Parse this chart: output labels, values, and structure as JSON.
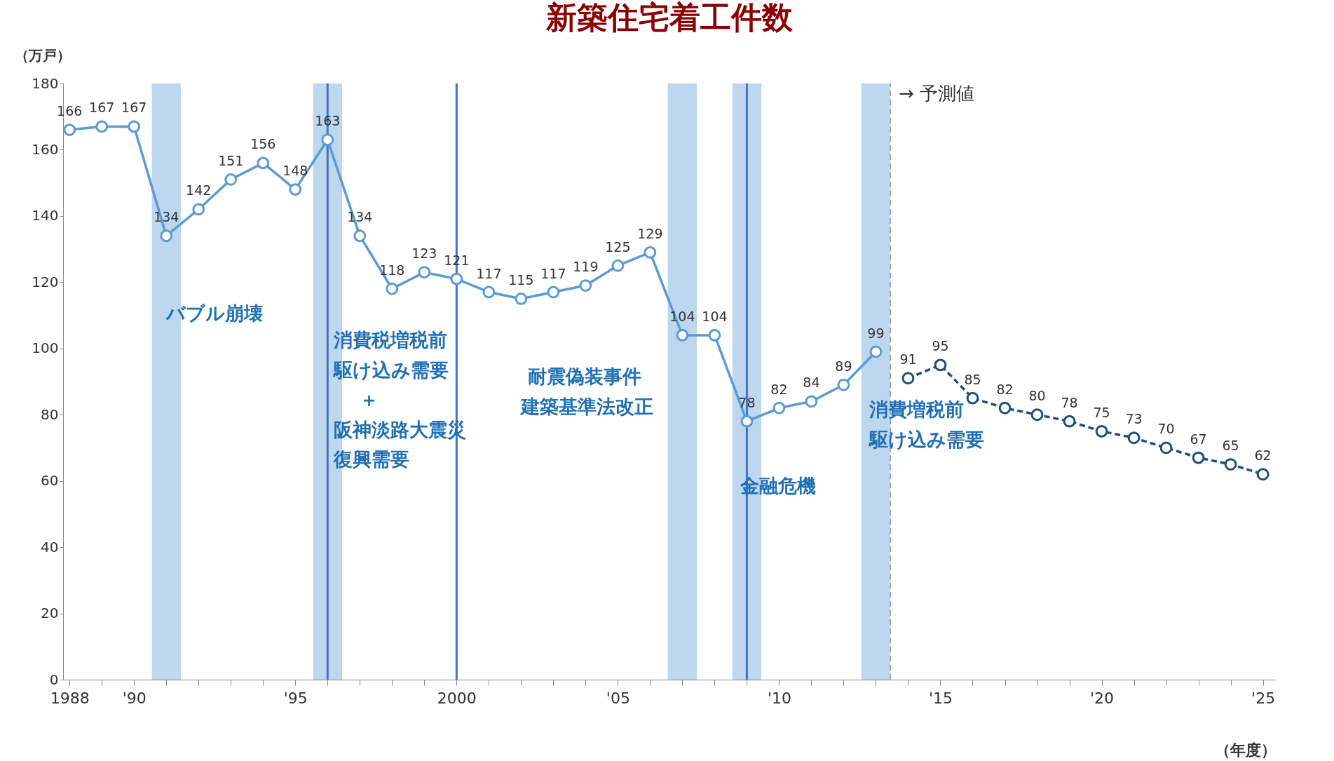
{
  "chart_data": {
    "type": "line",
    "title": "新築住宅着工件数",
    "ylabel": "（万戸）",
    "xlabel": "（年度）",
    "x": [
      1988,
      1989,
      1990,
      1991,
      1992,
      1993,
      1994,
      1995,
      1996,
      1997,
      1998,
      1999,
      2000,
      2001,
      2002,
      2003,
      2004,
      2005,
      2006,
      2007,
      2008,
      2009,
      2010,
      2011,
      2012,
      2013
    ],
    "series": [
      {
        "color": "#5b9bd5",
        "line_style": "solid",
        "values": [
          166,
          167,
          167,
          134,
          142,
          151,
          156,
          148,
          163,
          134,
          118,
          123,
          121,
          117,
          115,
          117,
          119,
          125,
          129,
          104,
          104,
          78,
          82,
          84,
          89,
          99
        ]
      },
      {
        "color": "#1f4e79",
        "line_style": "dashed",
        "x": [
          2014,
          2015,
          2016,
          2017,
          2018,
          2019,
          2020,
          2021,
          2022,
          2023,
          2024,
          2025
        ],
        "values": [
          91,
          95,
          85,
          82,
          80,
          78,
          75,
          73,
          70,
          67,
          65,
          62
        ]
      }
    ],
    "marker": "circle",
    "data_labels": true,
    "grid": false,
    "xlim": [
      1987.8,
      2025.4
    ],
    "ylim": [
      0,
      180
    ],
    "yticks": [
      0,
      20,
      40,
      60,
      80,
      100,
      120,
      140,
      160,
      180
    ],
    "xticks": [
      {
        "value": 1988,
        "label": "1988"
      },
      {
        "value": 1989,
        "label": null
      },
      {
        "value": 1990,
        "label": "'90"
      },
      {
        "value": 1991,
        "label": null
      },
      {
        "value": 1992,
        "label": null
      },
      {
        "value": 1993,
        "label": null
      },
      {
        "value": 1994,
        "label": null
      },
      {
        "value": 1995,
        "label": "'95"
      },
      {
        "value": 1996,
        "label": null
      },
      {
        "value": 1997,
        "label": null
      },
      {
        "value": 1998,
        "label": null
      },
      {
        "value": 1999,
        "label": null
      },
      {
        "value": 2000,
        "label": "2000"
      },
      {
        "value": 2001,
        "label": null
      },
      {
        "value": 2002,
        "label": null
      },
      {
        "value": 2003,
        "label": null
      },
      {
        "value": 2004,
        "label": null
      },
      {
        "value": 2005,
        "label": "'05"
      },
      {
        "value": 2006,
        "label": null
      },
      {
        "value": 2007,
        "label": null
      },
      {
        "value": 2008,
        "label": null
      },
      {
        "value": 2009,
        "label": null
      },
      {
        "value": 2010,
        "label": "'10"
      },
      {
        "value": 2011,
        "label": null
      },
      {
        "value": 2012,
        "label": null
      },
      {
        "value": 2013,
        "label": null
      },
      {
        "value": 2014,
        "label": null
      },
      {
        "value": 2015,
        "label": "'15"
      },
      {
        "value": 2016,
        "label": null
      },
      {
        "value": 2017,
        "label": null
      },
      {
        "value": 2018,
        "label": null
      },
      {
        "value": 2019,
        "label": null
      },
      {
        "value": 2020,
        "label": "'20"
      },
      {
        "value": 2021,
        "label": null
      },
      {
        "value": 2022,
        "label": null
      },
      {
        "value": 2023,
        "label": null
      },
      {
        "value": 2024,
        "label": null
      },
      {
        "value": 2025,
        "label": "'25"
      }
    ],
    "bands": [
      {
        "axis": "x",
        "from": 1990.55,
        "to": 1991.45,
        "color": "#bdd7ee"
      },
      {
        "axis": "x",
        "from": 1995.55,
        "to": 1996.45,
        "color": "#bdd7ee"
      },
      {
        "axis": "x",
        "from": 2006.55,
        "to": 2007.45,
        "color": "#bdd7ee"
      },
      {
        "axis": "x",
        "from": 2008.55,
        "to": 2009.45,
        "color": "#bdd7ee"
      },
      {
        "axis": "x",
        "from": 2012.55,
        "to": 2013.45,
        "color": "#bdd7ee"
      }
    ],
    "ref_lines": [
      {
        "axis": "x",
        "value": 1996,
        "color": "#4472c4",
        "line_style": "solid"
      },
      {
        "axis": "x",
        "value": 2000,
        "color": "#4472c4",
        "line_style": "solid"
      },
      {
        "axis": "x",
        "value": 2009,
        "color": "#4472c4",
        "line_style": "solid"
      },
      {
        "axis": "x",
        "value": 2013.45,
        "color": "#a6a6a6",
        "line_style": "dashed",
        "label": "→ 予測値"
      }
    ],
    "annotations": [
      "バブル崩壊",
      "消費税増税前",
      "駆け込み需要",
      "＋",
      "阪神淡路大震災",
      "復興需要",
      "耐震偽装事件",
      "建築基準法改正",
      "金融危機",
      "消費増税前",
      "駆け込み需要"
    ]
  }
}
